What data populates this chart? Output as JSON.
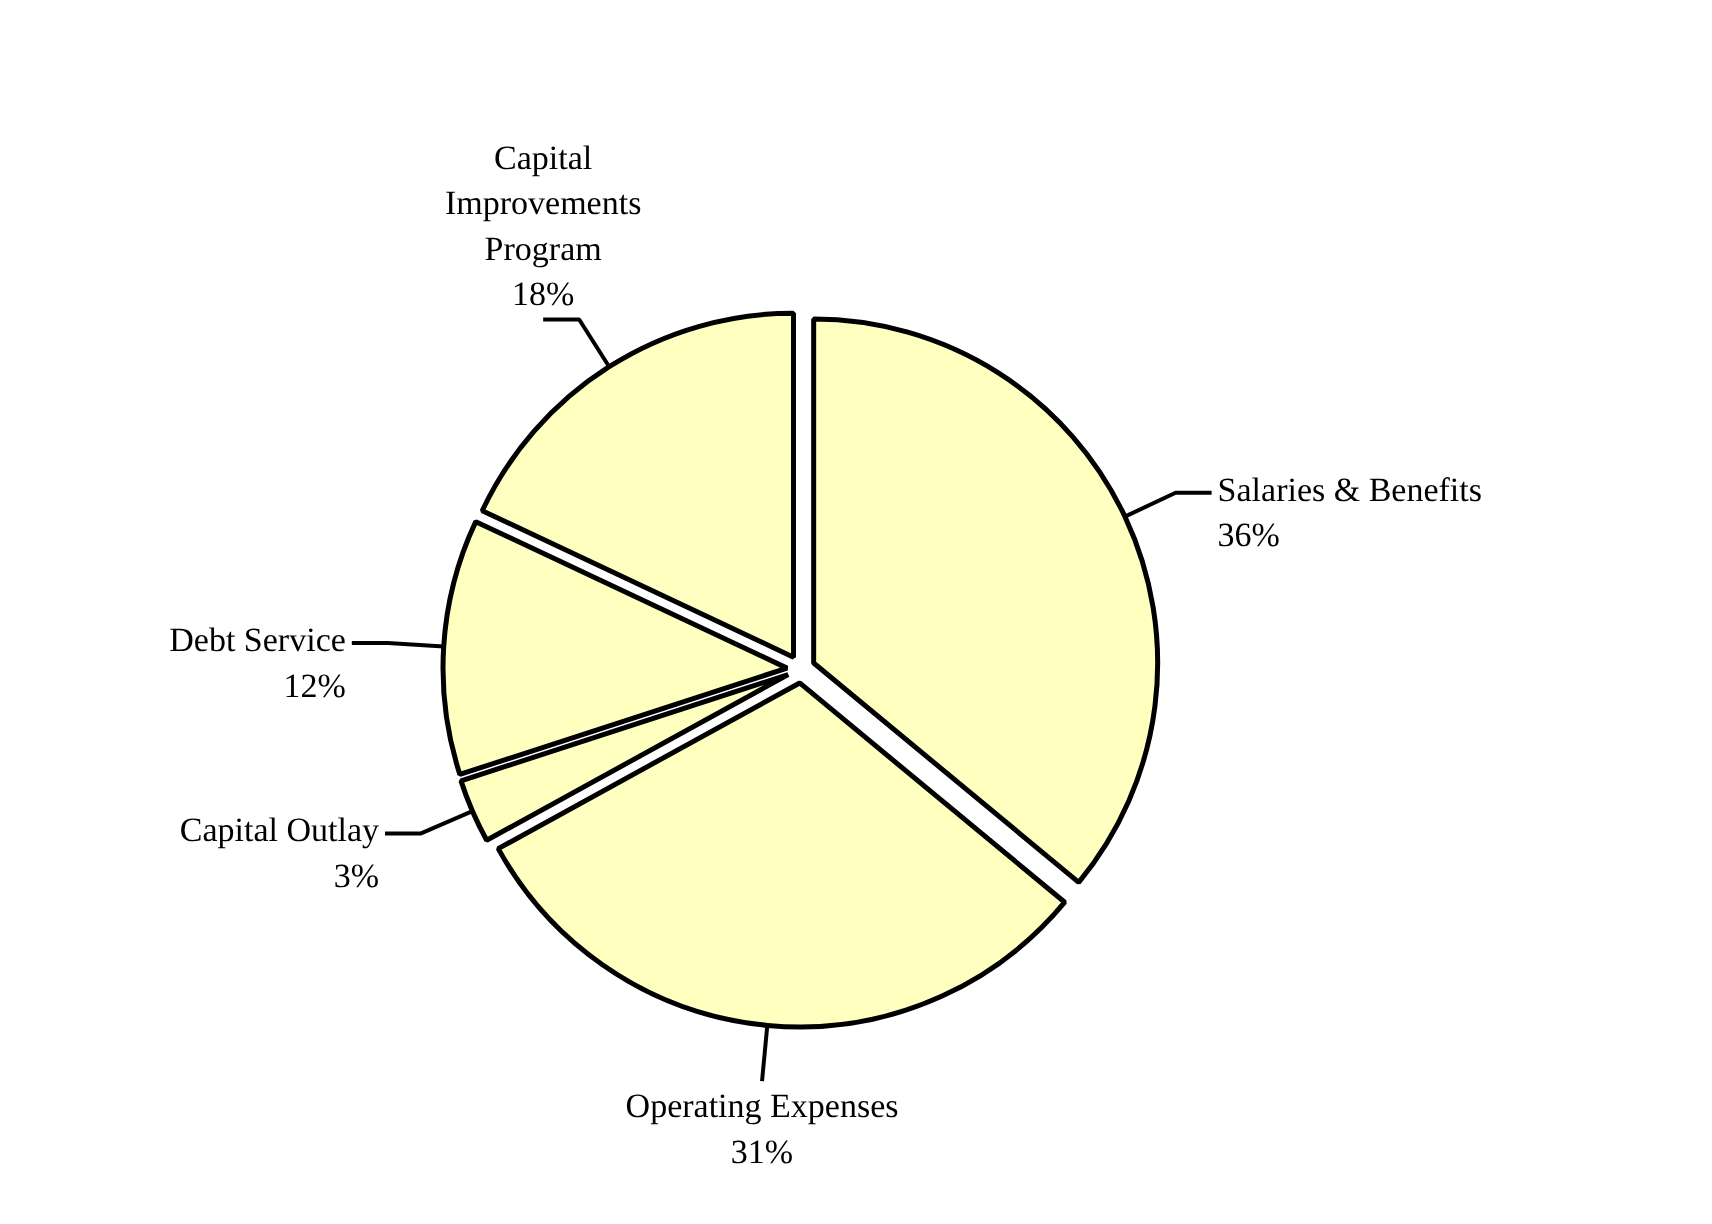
{
  "chart_data": {
    "type": "pie",
    "categories": [
      "Salaries & Benefits",
      "Operating Expenses",
      "Capital Outlay",
      "Debt Service",
      "Capital\nImprovements\nProgram"
    ],
    "values": [
      36,
      31,
      3,
      12,
      18
    ],
    "value_labels": [
      "36%",
      "31%",
      "3%",
      "12%",
      "18%"
    ],
    "colors": [
      "#ffffc0",
      "#ffffc0",
      "#ffffc0",
      "#ffffc0",
      "#ffffc0"
    ]
  }
}
